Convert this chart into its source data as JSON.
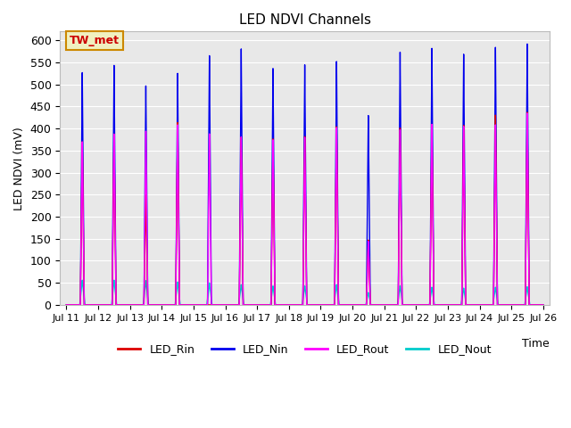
{
  "title": "LED NDVI Channels",
  "xlabel": "Time",
  "ylabel": "LED NDVI (mV)",
  "ylim": [
    0,
    620
  ],
  "background_color": "#e8e8e8",
  "annotation_text": "TW_met",
  "annotation_bg": "#f0f0c0",
  "annotation_border": "#cc8800",
  "legend_entries": [
    "LED_Rin",
    "LED_Nin",
    "LED_Rout",
    "LED_Nout"
  ],
  "line_colors": [
    "#dd0000",
    "#0000ee",
    "#ff00ff",
    "#00cccc"
  ],
  "nin_peaks": [
    527,
    544,
    498,
    527,
    568,
    584,
    540,
    549,
    556,
    432,
    576,
    584,
    570,
    585,
    592
  ],
  "rin_peaks": [
    370,
    388,
    249,
    415,
    0,
    383,
    379,
    385,
    407,
    148,
    403,
    411,
    408,
    431,
    437
  ],
  "rout_peaks": [
    370,
    388,
    395,
    410,
    390,
    383,
    377,
    383,
    405,
    145,
    399,
    411,
    406,
    409,
    435
  ],
  "nout_peaks": [
    56,
    56,
    55,
    52,
    50,
    46,
    43,
    43,
    46,
    28,
    43,
    40,
    38,
    40,
    41
  ],
  "peak_days": [
    11,
    12,
    13,
    14,
    15,
    16,
    17,
    18,
    19,
    20,
    21,
    22,
    23,
    24,
    25
  ],
  "xtick_labels": [
    "Jul 11",
    "Jul 12",
    "Jul 13",
    "Jul 14",
    "Jul 15",
    "Jul 16",
    "Jul 17",
    "Jul 18",
    "Jul 19",
    "Jul 20",
    "Jul 21",
    "Jul 22",
    "Jul 23",
    "Jul 24",
    "Jul 25",
    "Jul 26"
  ]
}
